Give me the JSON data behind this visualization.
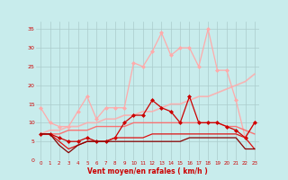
{
  "x": [
    0,
    1,
    2,
    3,
    4,
    5,
    6,
    7,
    8,
    9,
    10,
    11,
    12,
    13,
    14,
    15,
    16,
    17,
    18,
    19,
    20,
    21,
    22,
    23
  ],
  "line_rafales": [
    14,
    10,
    9,
    9,
    13,
    17,
    11,
    14,
    14,
    14,
    26,
    25,
    29,
    34,
    28,
    30,
    30,
    25,
    35,
    24,
    24,
    16,
    6,
    10
  ],
  "line_moyen_jagged": [
    7,
    7,
    6,
    5,
    5,
    6,
    5,
    5,
    6,
    10,
    12,
    12,
    16,
    14,
    13,
    10,
    17,
    10,
    10,
    10,
    9,
    8,
    6,
    10
  ],
  "line_trend1": [
    7,
    8,
    8,
    9,
    9,
    10,
    10,
    11,
    11,
    12,
    12,
    13,
    13,
    14,
    15,
    15,
    16,
    17,
    17,
    18,
    19,
    20,
    21,
    23
  ],
  "line_trend2": [
    7,
    7,
    7,
    8,
    8,
    8,
    9,
    9,
    9,
    9,
    10,
    10,
    10,
    10,
    10,
    10,
    10,
    10,
    10,
    10,
    9,
    9,
    8,
    7
  ],
  "line_flat1": [
    7,
    7,
    5,
    3,
    4,
    5,
    5,
    5,
    6,
    6,
    6,
    6,
    7,
    7,
    7,
    7,
    7,
    7,
    7,
    7,
    7,
    7,
    6,
    3
  ],
  "line_flat2": [
    7,
    7,
    4,
    2,
    4,
    5,
    5,
    5,
    5,
    5,
    5,
    5,
    5,
    5,
    5,
    5,
    6,
    6,
    6,
    6,
    6,
    6,
    3,
    3
  ],
  "bg_color": "#c8ecec",
  "grid_color": "#aacccc",
  "color_rafales": "#ffaaaa",
  "color_moyen": "#cc0000",
  "color_trend1": "#ffaaaa",
  "color_trend2": "#ff6666",
  "color_flat1": "#dd1111",
  "color_flat2": "#880000",
  "xlabel": "Vent moyen/en rafales ( km/h )",
  "tick_color": "#cc0000",
  "ylim": [
    0,
    37
  ],
  "yticks": [
    0,
    5,
    10,
    15,
    20,
    25,
    30,
    35
  ]
}
